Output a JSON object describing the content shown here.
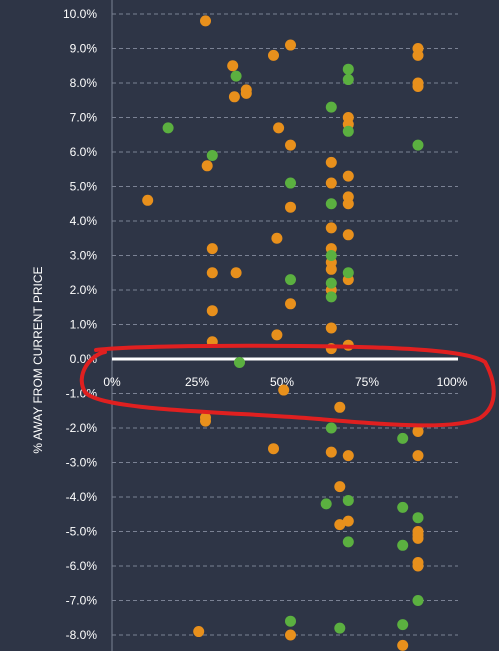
{
  "chart_data": {
    "type": "scatter",
    "title": "",
    "xlabel": "",
    "ylabel": "% AWAY FROM CURRENT PRICE",
    "xlim": [
      0,
      100
    ],
    "ylim": [
      -8.3,
      10.2
    ],
    "x_ticks": [
      "0%",
      "25%",
      "50%",
      "75%",
      "100%"
    ],
    "y_ticks": [
      "10.0%",
      "9.0%",
      "8.0%",
      "7.0%",
      "6.0%",
      "5.0%",
      "4.0%",
      "3.0%",
      "2.0%",
      "1.0%",
      "0.0%",
      "-1.0%",
      "-2.0%",
      "-3.0%",
      "-4.0%",
      "-5.0%",
      "-6.0%",
      "-7.0%",
      "-8.0%"
    ],
    "grid": true,
    "annotation": "red freehand ellipse circling the 0.0% line and x-axis labels",
    "colors": {
      "background": "#2e3546",
      "orange": "#e8901c",
      "green": "#5bb040",
      "annotation": "#e02020",
      "grid": "#7b8294"
    },
    "series": [
      {
        "color": "orange",
        "points": [
          [
            27.5,
            9.8
          ],
          [
            52.5,
            9.1
          ],
          [
            35.5,
            8.5
          ],
          [
            47.5,
            8.8
          ],
          [
            90,
            9.0
          ],
          [
            90,
            8.8
          ],
          [
            36,
            7.6
          ],
          [
            39.5,
            7.7
          ],
          [
            39.5,
            7.8
          ],
          [
            90,
            8.0
          ],
          [
            90,
            7.9
          ],
          [
            69.5,
            7.0
          ],
          [
            69.5,
            6.8
          ],
          [
            49,
            6.7
          ],
          [
            52.5,
            6.2
          ],
          [
            28,
            5.6
          ],
          [
            64.5,
            5.7
          ],
          [
            64.5,
            5.1
          ],
          [
            69.5,
            5.3
          ],
          [
            10.5,
            4.6
          ],
          [
            52.5,
            4.4
          ],
          [
            69.5,
            4.7
          ],
          [
            69.5,
            4.5
          ],
          [
            48.5,
            3.5
          ],
          [
            64.5,
            3.8
          ],
          [
            69.5,
            3.6
          ],
          [
            29.5,
            3.2
          ],
          [
            64.5,
            3.2
          ],
          [
            29.5,
            2.5
          ],
          [
            36.5,
            2.5
          ],
          [
            64.5,
            2.8
          ],
          [
            64.5,
            2.6
          ],
          [
            69.5,
            2.3
          ],
          [
            52.5,
            1.6
          ],
          [
            64.5,
            2.0
          ],
          [
            29.5,
            1.4
          ],
          [
            48.5,
            0.7
          ],
          [
            64.5,
            0.9
          ],
          [
            29.5,
            0.5
          ],
          [
            64.5,
            0.3
          ],
          [
            69.5,
            0.4
          ],
          [
            50.5,
            -0.9
          ],
          [
            67,
            -1.4
          ],
          [
            27.5,
            -1.7
          ],
          [
            27.5,
            -1.8
          ],
          [
            90,
            -2.1
          ],
          [
            47.5,
            -2.6
          ],
          [
            64.5,
            -2.7
          ],
          [
            69.5,
            -2.8
          ],
          [
            90,
            -2.8
          ],
          [
            67,
            -3.7
          ],
          [
            69.5,
            -4.7
          ],
          [
            67,
            -4.8
          ],
          [
            90,
            -5.0
          ],
          [
            90,
            -5.1
          ],
          [
            90,
            -5.2
          ],
          [
            90,
            -5.9
          ],
          [
            90,
            -6.0
          ],
          [
            25.5,
            -7.9
          ],
          [
            52.5,
            -8.0
          ],
          [
            85.5,
            -8.3
          ]
        ]
      },
      {
        "color": "green",
        "points": [
          [
            69.5,
            8.4
          ],
          [
            36.5,
            8.2
          ],
          [
            69.5,
            8.1
          ],
          [
            64.5,
            7.3
          ],
          [
            16.5,
            6.7
          ],
          [
            69.5,
            6.6
          ],
          [
            29.5,
            5.9
          ],
          [
            90,
            6.2
          ],
          [
            52.5,
            5.1
          ],
          [
            64.5,
            4.5
          ],
          [
            64.5,
            3.0
          ],
          [
            69.5,
            2.5
          ],
          [
            52.5,
            2.3
          ],
          [
            64.5,
            2.2
          ],
          [
            64.5,
            1.8
          ],
          [
            37.5,
            -0.1
          ],
          [
            64.5,
            -2.0
          ],
          [
            85.5,
            -2.3
          ],
          [
            63,
            -4.2
          ],
          [
            69.5,
            -4.1
          ],
          [
            85.5,
            -4.3
          ],
          [
            90,
            -4.6
          ],
          [
            69.5,
            -5.3
          ],
          [
            85.5,
            -5.4
          ],
          [
            90,
            -7.0
          ],
          [
            52.5,
            -7.6
          ],
          [
            85.5,
            -7.7
          ],
          [
            67,
            -7.8
          ]
        ]
      }
    ]
  }
}
